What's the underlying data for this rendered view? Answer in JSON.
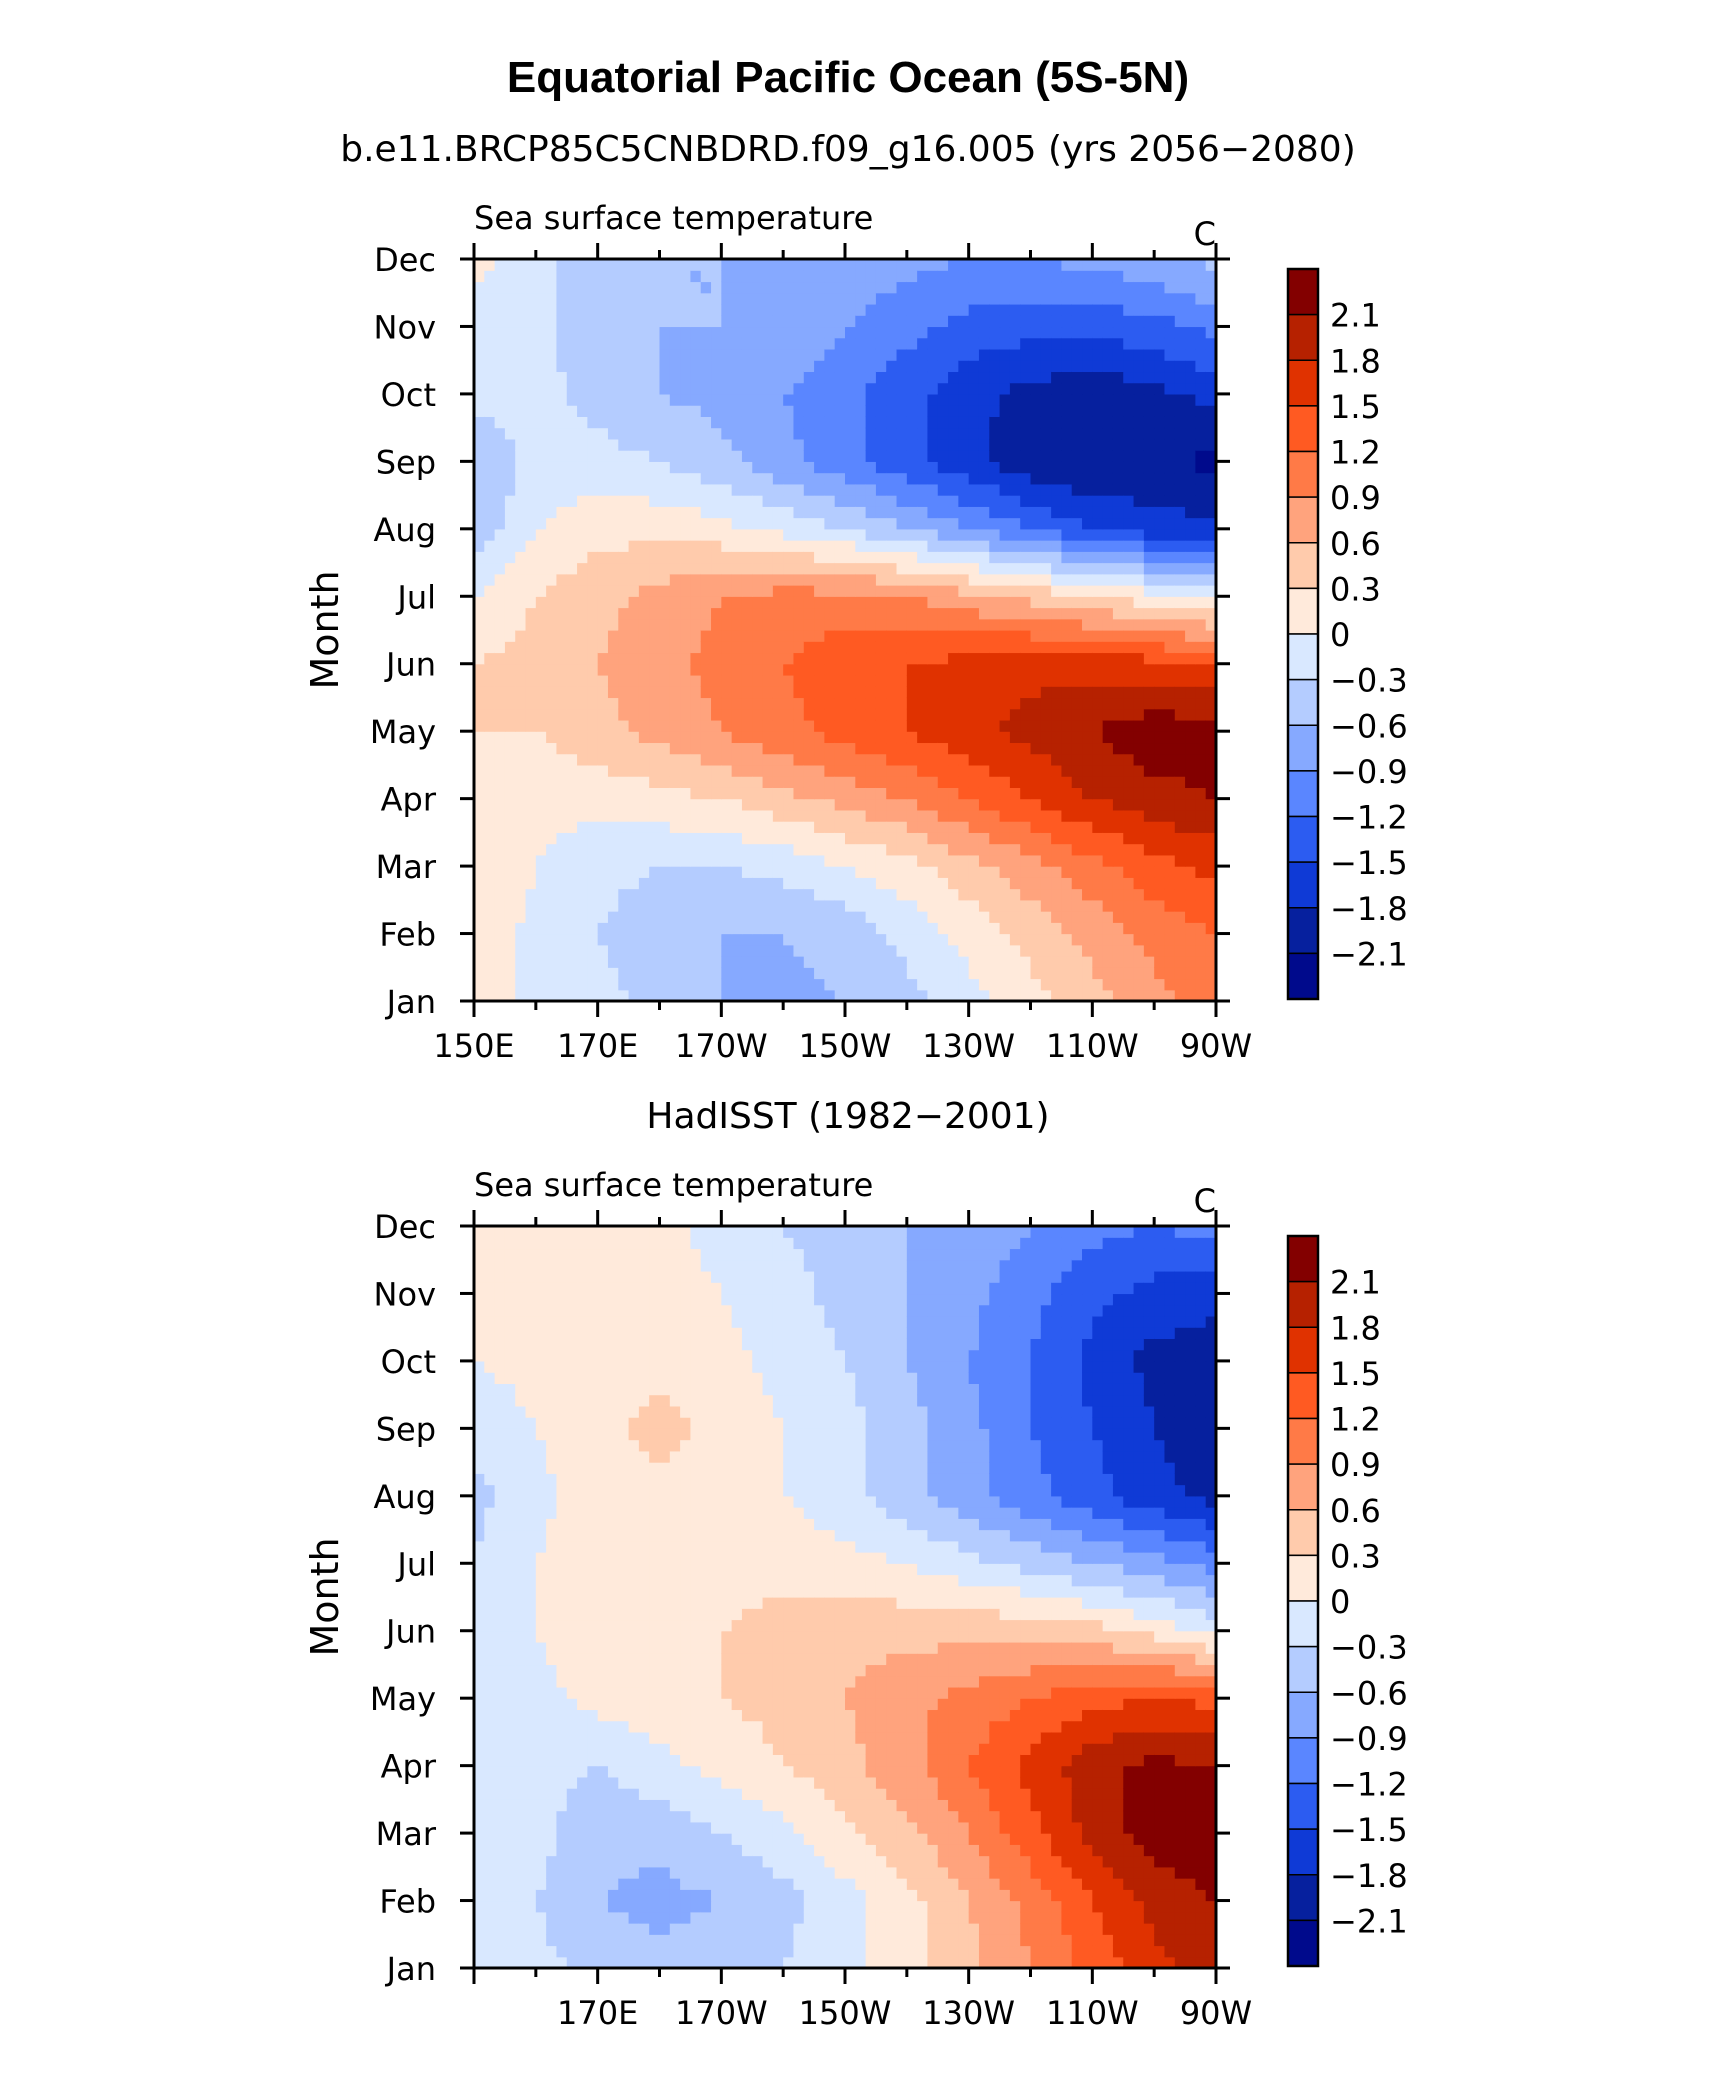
{
  "figure_title": "Equatorial Pacific Ocean (5S-5N)",
  "colorbar_levels": [
    "2.1",
    "1.8",
    "1.5",
    "1.2",
    "0.9",
    "0.6",
    "0.3",
    "0",
    "−0.3",
    "−0.6",
    "−0.9",
    "−1.2",
    "−1.5",
    "−1.8",
    "−2.1"
  ],
  "colorbar_colors": [
    "#830000",
    "#b62100",
    "#e03200",
    "#ff5a22",
    "#ff7a47",
    "#ffa37d",
    "#ffcbac",
    "#ffeadb",
    "#d9e8ff",
    "#b4ccff",
    "#86a9ff",
    "#5a86ff",
    "#2c5cf1",
    "#0f3ad6",
    "#06209e",
    "#000a8c"
  ],
  "chart_data": [
    {
      "type": "heatmap",
      "subtitle": "b.e11.BRCP85C5CNBDRD.f09_g16.005 (yrs 2056−2080)",
      "left_label": "Sea surface temperature",
      "units": "C",
      "ylabel": "Month",
      "y_categories": [
        "Jan",
        "Feb",
        "Mar",
        "Apr",
        "May",
        "Jun",
        "Jul",
        "Aug",
        "Sep",
        "Oct",
        "Nov",
        "Dec"
      ],
      "x_ticklabels": [
        "150E",
        "170E",
        "170W",
        "150W",
        "130W",
        "110W",
        "90W"
      ],
      "xlim_lon_east": [
        150,
        270
      ],
      "x": [
        150,
        160,
        170,
        180,
        190,
        200,
        210,
        220,
        230,
        240,
        250,
        260,
        270
      ],
      "values": [
        [
          0.2,
          -0.1,
          -0.2,
          -0.4,
          -0.6,
          -0.7,
          -0.6,
          -0.4,
          -0.1,
          0.2,
          0.5,
          0.8,
          1.1
        ],
        [
          0.2,
          -0.1,
          -0.3,
          -0.5,
          -0.6,
          -0.6,
          -0.5,
          -0.2,
          0.1,
          0.4,
          0.7,
          1.0,
          1.2
        ],
        [
          0.3,
          0.0,
          -0.2,
          -0.3,
          -0.3,
          -0.2,
          0.0,
          0.2,
          0.5,
          0.8,
          1.1,
          1.4,
          1.6
        ],
        [
          0.3,
          0.1,
          0.1,
          0.2,
          0.3,
          0.5,
          0.7,
          0.9,
          1.2,
          1.5,
          1.8,
          2.0,
          2.1
        ],
        [
          0.3,
          0.3,
          0.5,
          0.7,
          0.9,
          1.1,
          1.3,
          1.5,
          1.7,
          1.9,
          2.1,
          2.3,
          2.2
        ],
        [
          0.3,
          0.4,
          0.6,
          0.8,
          1.0,
          1.2,
          1.4,
          1.5,
          1.6,
          1.7,
          1.7,
          1.6,
          1.5
        ],
        [
          0.0,
          0.3,
          0.5,
          0.7,
          0.9,
          1.0,
          1.0,
          0.9,
          0.7,
          0.5,
          0.3,
          0.1,
          -0.1
        ],
        [
          -0.5,
          0.0,
          0.2,
          0.2,
          0.1,
          -0.1,
          -0.3,
          -0.6,
          -0.9,
          -1.2,
          -1.5,
          -1.7,
          -1.7
        ],
        [
          -0.6,
          -0.2,
          -0.2,
          -0.3,
          -0.5,
          -0.8,
          -1.1,
          -1.4,
          -1.7,
          -2.0,
          -2.1,
          -2.0,
          -2.2
        ],
        [
          -0.2,
          -0.2,
          -0.4,
          -0.6,
          -0.7,
          -0.9,
          -1.1,
          -1.4,
          -1.7,
          -1.9,
          -2.0,
          -1.9,
          -1.7
        ],
        [
          -0.1,
          -0.2,
          -0.5,
          -0.6,
          -0.6,
          -0.7,
          -0.9,
          -1.1,
          -1.3,
          -1.4,
          -1.4,
          -1.3,
          -1.1
        ],
        [
          0.1,
          -0.2,
          -0.5,
          -0.6,
          -0.6,
          -0.6,
          -0.7,
          -0.8,
          -0.9,
          -0.9,
          -0.8,
          -0.7,
          -0.5
        ]
      ]
    },
    {
      "type": "heatmap",
      "subtitle": "HadISST (1982−2001)",
      "left_label": "Sea surface temperature",
      "units": "C",
      "ylabel": "Month",
      "y_categories": [
        "Jan",
        "Feb",
        "Mar",
        "Apr",
        "May",
        "Jun",
        "Jul",
        "Aug",
        "Sep",
        "Oct",
        "Nov",
        "Dec"
      ],
      "x_ticklabels": [
        "170E",
        "170W",
        "150W",
        "130W",
        "110W",
        "90W"
      ],
      "xlim_lon_east": [
        150,
        270
      ],
      "x": [
        150,
        160,
        170,
        180,
        190,
        200,
        210,
        220,
        230,
        240,
        250,
        260,
        270
      ],
      "values": [
        [
          0.0,
          -0.2,
          -0.4,
          -0.5,
          -0.4,
          -0.3,
          -0.1,
          0.2,
          0.5,
          0.9,
          1.3,
          1.7,
          2.0
        ],
        [
          -0.1,
          -0.3,
          -0.6,
          -0.7,
          -0.6,
          -0.4,
          -0.1,
          0.2,
          0.6,
          1.0,
          1.5,
          1.9,
          2.1
        ],
        [
          -0.1,
          -0.2,
          -0.5,
          -0.5,
          -0.3,
          -0.1,
          0.2,
          0.5,
          0.9,
          1.4,
          1.9,
          2.3,
          2.3
        ],
        [
          0.0,
          -0.2,
          -0.3,
          -0.1,
          0.1,
          0.3,
          0.5,
          0.8,
          1.2,
          1.6,
          2.0,
          2.2,
          2.1
        ],
        [
          -0.1,
          -0.1,
          0.1,
          0.2,
          0.3,
          0.4,
          0.6,
          0.8,
          1.0,
          1.2,
          1.4,
          1.5,
          1.4
        ],
        [
          -0.2,
          0.0,
          0.2,
          0.2,
          0.3,
          0.4,
          0.5,
          0.5,
          0.5,
          0.5,
          0.4,
          0.2,
          -0.1
        ],
        [
          -0.3,
          0.0,
          0.2,
          0.2,
          0.2,
          0.2,
          0.1,
          0.0,
          -0.2,
          -0.4,
          -0.6,
          -0.8,
          -1.0
        ],
        [
          -0.4,
          -0.1,
          0.2,
          0.2,
          0.1,
          0.0,
          -0.2,
          -0.5,
          -0.8,
          -1.1,
          -1.4,
          -1.7,
          -1.9
        ],
        [
          -0.2,
          0.0,
          0.2,
          0.4,
          0.2,
          0.0,
          -0.2,
          -0.5,
          -0.8,
          -1.2,
          -1.5,
          -1.8,
          -2.0
        ],
        [
          0.0,
          0.1,
          0.2,
          0.2,
          0.1,
          -0.1,
          -0.3,
          -0.6,
          -0.9,
          -1.2,
          -1.6,
          -1.9,
          -2.0
        ],
        [
          0.1,
          0.1,
          0.1,
          0.1,
          0.0,
          -0.2,
          -0.4,
          -0.6,
          -0.8,
          -1.1,
          -1.4,
          -1.6,
          -1.7
        ],
        [
          0.1,
          0.1,
          0.1,
          0.1,
          -0.1,
          -0.3,
          -0.4,
          -0.6,
          -0.7,
          -0.9,
          -1.1,
          -1.2,
          -1.1
        ]
      ]
    }
  ]
}
